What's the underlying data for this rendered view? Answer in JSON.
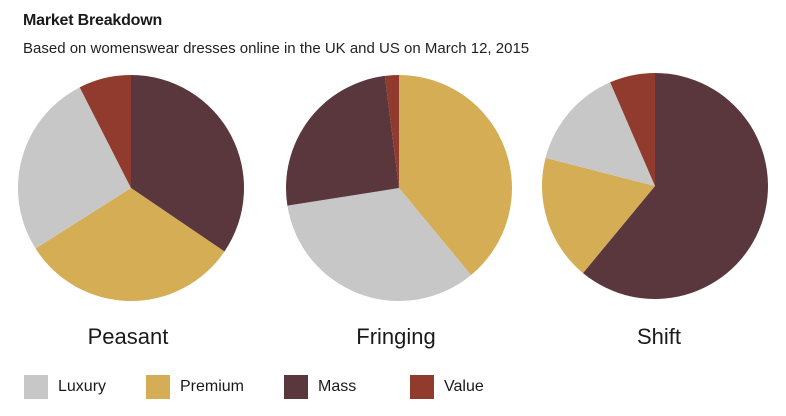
{
  "header": {
    "title": "Market Breakdown",
    "subtitle": "Based on womenswear dresses online in the UK and US on March 12, 2015"
  },
  "colors": {
    "Luxury": "#c8c7c7",
    "Premium": "#d4ad55",
    "Mass": "#5a373d",
    "Value": "#913a2e"
  },
  "chart_data": {
    "type": "pie",
    "categories": [
      "Luxury",
      "Premium",
      "Mass",
      "Value"
    ],
    "legend_position": "bottom-left",
    "pies": [
      {
        "name": "Peasant",
        "slices": [
          {
            "category": "Mass",
            "value": 34.5
          },
          {
            "category": "Premium",
            "value": 31.5
          },
          {
            "category": "Luxury",
            "value": 26.5
          },
          {
            "category": "Value",
            "value": 7.5
          }
        ]
      },
      {
        "name": "Fringing",
        "slices": [
          {
            "category": "Premium",
            "value": 39.0
          },
          {
            "category": "Luxury",
            "value": 33.5
          },
          {
            "category": "Mass",
            "value": 25.5
          },
          {
            "category": "Value",
            "value": 2.0
          }
        ]
      },
      {
        "name": "Shift",
        "slices": [
          {
            "category": "Mass",
            "value": 61.0
          },
          {
            "category": "Premium",
            "value": 18.0
          },
          {
            "category": "Luxury",
            "value": 14.5
          },
          {
            "category": "Value",
            "value": 6.5
          }
        ]
      }
    ]
  },
  "legend": {
    "items": [
      {
        "label": "Luxury"
      },
      {
        "label": "Premium"
      },
      {
        "label": "Mass"
      },
      {
        "label": "Value"
      }
    ]
  }
}
